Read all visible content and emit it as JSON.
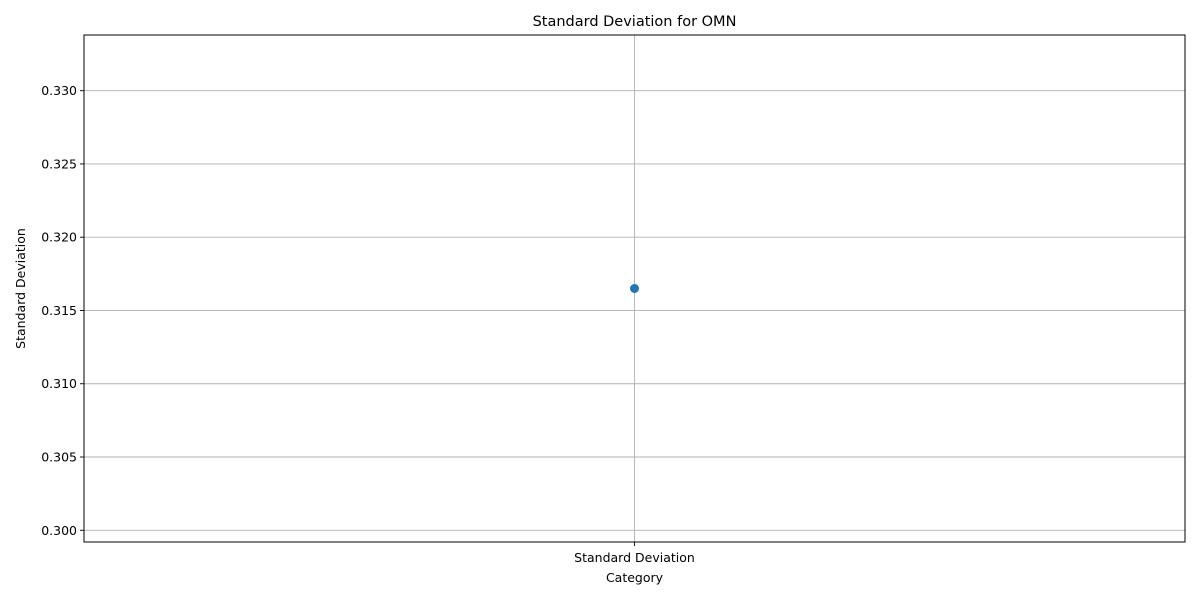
{
  "chart_data": {
    "type": "line",
    "title": "Standard Deviation for OMN",
    "xlabel": "Category",
    "ylabel": "Standard Deviation",
    "categories": [
      "Standard Deviation"
    ],
    "series": [
      {
        "values": [
          0.3165
        ],
        "color": "#1f77b4",
        "marker": "circle"
      }
    ],
    "ylim": [
      0.2992,
      0.3338
    ],
    "yticks": [
      0.3,
      0.305,
      0.31,
      0.315,
      0.32,
      0.325,
      0.33
    ],
    "ytick_labels": [
      "0.300",
      "0.305",
      "0.310",
      "0.315",
      "0.320",
      "0.325",
      "0.330"
    ],
    "grid": true
  }
}
